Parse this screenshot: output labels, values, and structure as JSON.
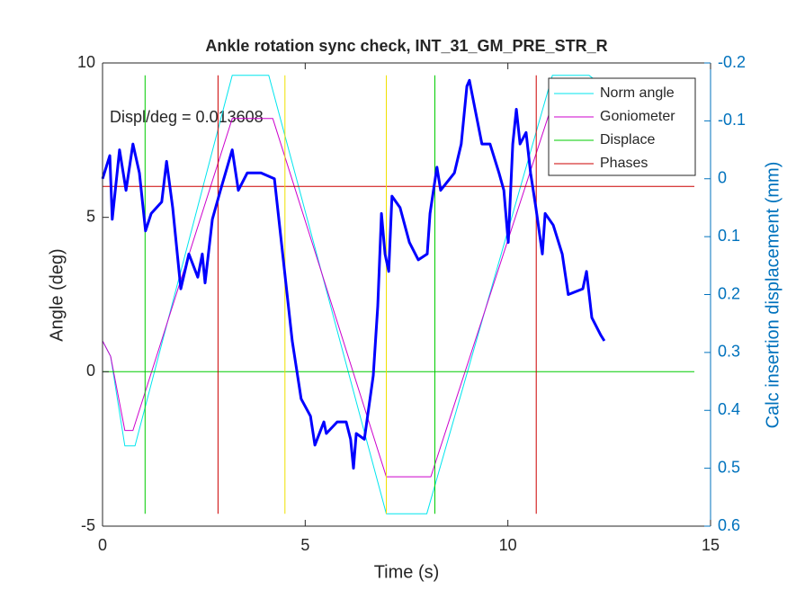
{
  "chart_data": {
    "type": "line",
    "title": "Ankle rotation sync check, INT_31_GM_PRE_STR_R",
    "xlabel": "Time (s)",
    "ylabel": "Angle (deg)",
    "y2label": "Calc insertion displacement (mm)",
    "annotation": "Displ/deg = 0.013608",
    "xlim": [
      0,
      15
    ],
    "xticks": [
      0,
      5,
      10,
      15
    ],
    "ylim": [
      -5,
      10
    ],
    "yticks": [
      -5,
      0,
      5,
      10
    ],
    "y2lim": [
      -0.2,
      0.6
    ],
    "y2ticks": [
      -0.2,
      -0.1,
      0,
      0.1,
      0.2,
      0.3,
      0.4,
      0.5,
      0.6
    ],
    "y2reverse": true,
    "legend": "northeast",
    "series": [
      {
        "name": "Norm angle",
        "color": "#00e5ee",
        "x": [
          0,
          0.2,
          0.55,
          0.8,
          3.2,
          4.1,
          7.0,
          8.0,
          11.1,
          12.0,
          12.3
        ],
        "values": [
          1,
          0.5,
          -2.4,
          -2.4,
          9.6,
          9.6,
          -4.6,
          -4.6,
          9.6,
          9.6,
          9.3
        ]
      },
      {
        "name": "Goniometer",
        "color": "#cc00cc",
        "x": [
          0,
          0.2,
          0.55,
          0.75,
          3.2,
          4.2,
          7.0,
          8.1,
          11.3
        ],
        "values": [
          1,
          0.5,
          -1.9,
          -1.9,
          8.2,
          8.2,
          -3.4,
          -3.4,
          9.5
        ]
      },
      {
        "name": "Displace",
        "color": "#00cc00",
        "x": [
          0,
          14.6,
          null,
          1.05,
          1.05,
          null,
          8.2,
          8.2
        ],
        "values": [
          0,
          0,
          null,
          -4.6,
          9.6,
          null,
          -4.6,
          9.6
        ]
      },
      {
        "name": "Phases",
        "color": "#cc0000",
        "x": [
          0,
          14.6,
          null,
          2.85,
          2.85,
          null,
          10.7,
          10.7
        ],
        "values": [
          6,
          6,
          null,
          -4.6,
          9.6,
          null,
          -4.6,
          9.6
        ]
      },
      {
        "color": "#f0e000",
        "x": [
          4.5,
          4.5,
          null,
          7.0,
          7.0
        ],
        "values": [
          -4.6,
          9.6,
          null,
          -4.6,
          9.6
        ]
      },
      {
        "color": "#0000ff",
        "axis": "y2",
        "line_width": 3,
        "x": [
          0,
          0.18,
          0.24,
          0.42,
          0.58,
          0.75,
          0.91,
          1.06,
          1.2,
          1.46,
          1.58,
          1.73,
          1.93,
          2.13,
          2.35,
          2.46,
          2.53,
          2.71,
          2.91,
          3.2,
          3.35,
          3.57,
          3.91,
          4.24,
          4.46,
          4.68,
          4.9,
          5.13,
          5.24,
          5.46,
          5.52,
          5.79,
          6.01,
          6.12,
          6.19,
          6.26,
          6.46,
          6.68,
          6.79,
          6.88,
          6.97,
          7.06,
          7.14,
          7.34,
          7.57,
          7.79,
          8.01,
          8.08,
          8.25,
          8.34,
          8.68,
          8.85,
          8.99,
          9.05,
          9.19,
          9.36,
          9.56,
          9.78,
          9.9,
          10.01,
          10.12,
          10.21,
          10.3,
          10.45,
          10.56,
          10.69,
          10.85,
          10.92,
          11.12,
          11.34,
          11.49,
          11.85,
          11.94,
          12.07,
          12.29,
          12.38
        ],
        "values": [
          0,
          -0.04,
          0.07,
          -0.05,
          0.02,
          -0.06,
          -0.01,
          0.09,
          0.06,
          0.04,
          -0.03,
          0.05,
          0.19,
          0.13,
          0.17,
          0.13,
          0.18,
          0.07,
          0.02,
          -0.05,
          0.02,
          -0.01,
          -0.01,
          0,
          0.14,
          0.28,
          0.38,
          0.41,
          0.46,
          0.42,
          0.44,
          0.42,
          0.42,
          0.45,
          0.5,
          0.44,
          0.45,
          0.34,
          0.22,
          0.06,
          0.13,
          0.16,
          0.03,
          0.05,
          0.11,
          0.14,
          0.13,
          0.06,
          -0.02,
          0.02,
          -0.01,
          -0.06,
          -0.16,
          -0.17,
          -0.12,
          -0.06,
          -0.06,
          -0.01,
          0.02,
          0.11,
          -0.06,
          -0.12,
          -0.06,
          -0.08,
          -0.01,
          0.05,
          0.13,
          0.06,
          0.08,
          0.13,
          0.2,
          0.19,
          0.16,
          0.24,
          0.27,
          0.28
        ]
      }
    ]
  }
}
